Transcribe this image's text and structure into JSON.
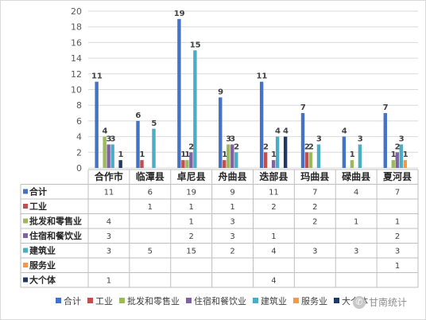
{
  "chart_data": {
    "type": "bar",
    "categories": [
      "合作市",
      "临潭县",
      "卓尼县",
      "舟曲县",
      "迭部县",
      "玛曲县",
      "碌曲县",
      "夏河县"
    ],
    "ylim": [
      0,
      20
    ],
    "yticks": [
      0,
      2,
      4,
      6,
      8,
      10,
      12,
      14,
      16,
      18,
      20
    ],
    "grid": true,
    "legend_position": "bottom",
    "data_table": true,
    "series": [
      {
        "name": "合计",
        "color": "#4472C4",
        "values": [
          11,
          6,
          19,
          9,
          11,
          7,
          4,
          7
        ]
      },
      {
        "name": "工业",
        "color": "#C0504D",
        "values": [
          null,
          1,
          1,
          1,
          2,
          2,
          null,
          null
        ]
      },
      {
        "name": "批发和零售业",
        "color": "#9BBB59",
        "values": [
          4,
          null,
          1,
          3,
          null,
          2,
          1,
          1
        ]
      },
      {
        "name": "住宿和餐饮业",
        "color": "#8064A2",
        "values": [
          3,
          null,
          2,
          3,
          1,
          null,
          null,
          2
        ]
      },
      {
        "name": "建筑业",
        "color": "#4BACC6",
        "values": [
          3,
          5,
          15,
          2,
          4,
          3,
          3,
          3
        ]
      },
      {
        "name": "服务业",
        "color": "#F79646",
        "values": [
          null,
          null,
          null,
          null,
          null,
          null,
          null,
          1
        ]
      },
      {
        "name": "大个体",
        "color": "#1F3864",
        "values": [
          1,
          null,
          null,
          null,
          4,
          null,
          null,
          null
        ]
      }
    ]
  },
  "watermark": {
    "icon": "wechat-icon",
    "text": "甘南统计"
  }
}
